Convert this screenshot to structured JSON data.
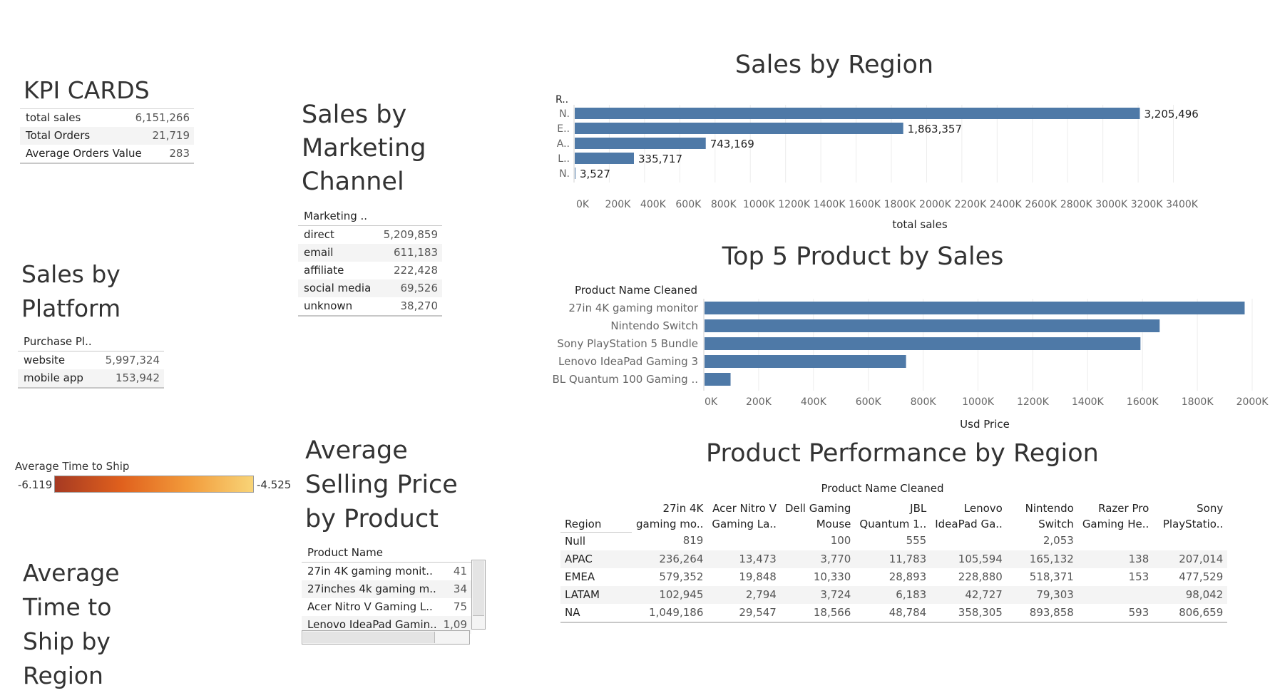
{
  "kpi": {
    "title": "KPI CARDS",
    "rows": [
      {
        "label": "total sales",
        "value": "6,151,266"
      },
      {
        "label": "Total Orders",
        "value": "21,719"
      },
      {
        "label": "Average Orders Value",
        "value": "283"
      }
    ]
  },
  "platform": {
    "title_lines": [
      "Sales by",
      "Platform"
    ],
    "header": "Purchase Pl..",
    "rows": [
      {
        "label": "website",
        "value": "5,997,324"
      },
      {
        "label": "mobile app",
        "value": "153,942"
      }
    ]
  },
  "marketing": {
    "title_lines": [
      "Sales by",
      "Marketing",
      "Channel"
    ],
    "header": "Marketing ..",
    "rows": [
      {
        "label": "direct",
        "value": "5,209,859"
      },
      {
        "label": "email",
        "value": "611,183"
      },
      {
        "label": "affiliate",
        "value": "222,428"
      },
      {
        "label": "social media",
        "value": "69,526"
      },
      {
        "label": "unknown",
        "value": "38,270"
      }
    ]
  },
  "ship_legend": {
    "title": "Average Time to Ship",
    "min_label": "-6.119",
    "max_label": "-4.525",
    "colors": [
      "#a63a22",
      "#e0601d",
      "#f29a3a",
      "#f8d477"
    ]
  },
  "avg_ship_title_lines": [
    "Average",
    "Time to",
    "Ship by",
    "Region"
  ],
  "asp": {
    "title_lines": [
      "Average",
      "Selling Price",
      "by Product"
    ],
    "header": "Product Name",
    "rows": [
      {
        "label": "27in 4K gaming monit..",
        "value": "41"
      },
      {
        "label": "27inches 4k gaming m..",
        "value": "34"
      },
      {
        "label": "Acer Nitro V Gaming L..",
        "value": "75"
      },
      {
        "label": "Lenovo IdeaPad Gamin..",
        "value": "1,09"
      }
    ]
  },
  "chart_data": [
    {
      "type": "bar",
      "orientation": "horizontal",
      "title": "Sales by Region",
      "ylabel": "R..",
      "xlabel": "total sales",
      "categories": [
        "N.",
        "E..",
        "A..",
        "L..",
        "N."
      ],
      "values": [
        3205496,
        1863357,
        743169,
        335717,
        3527
      ],
      "value_labels": [
        "3,205,496",
        "1,863,357",
        "743,169",
        "335,717",
        "3,527"
      ],
      "xlim": [
        0,
        3600000
      ],
      "ticks": [
        0,
        200000,
        400000,
        600000,
        800000,
        1000000,
        1200000,
        1400000,
        1600000,
        1800000,
        2000000,
        2200000,
        2400000,
        2600000,
        2800000,
        3000000,
        3200000,
        3400000
      ],
      "tick_labels": [
        "0K",
        "200K",
        "400K",
        "600K",
        "800K",
        "1000K",
        "1200K",
        "1400K",
        "1600K",
        "1800K",
        "2000K",
        "2200K",
        "2400K",
        "2600K",
        "2800K",
        "3000K",
        "3200K",
        "3400K"
      ],
      "grid": true,
      "color": "#4e79a7"
    },
    {
      "type": "bar",
      "orientation": "horizontal",
      "title": "Top 5 Product by Sales",
      "ylabel": "Product Name Cleaned",
      "xlabel": "Usd Price",
      "categories": [
        "27in 4K gaming monitor",
        "Nintendo Switch",
        "Sony PlayStation 5 Bundle",
        "Lenovo IdeaPad Gaming 3",
        "JBL Quantum 100 Gaming .."
      ],
      "values": [
        1970000,
        1660000,
        1590000,
        735000,
        95000
      ],
      "xlim": [
        0,
        2000000
      ],
      "ticks": [
        0,
        200000,
        400000,
        600000,
        800000,
        1000000,
        1200000,
        1400000,
        1600000,
        1800000,
        2000000
      ],
      "tick_labels": [
        "0K",
        "200K",
        "400K",
        "600K",
        "800K",
        "1000K",
        "1200K",
        "1400K",
        "1600K",
        "1800K",
        "2000K"
      ],
      "grid": true,
      "color": "#4e79a7"
    },
    {
      "type": "table",
      "title": "Product Performance by Region",
      "column_group": "Product Name Cleaned",
      "row_header": "Region",
      "columns": [
        [
          "27in 4K",
          "gaming mo.."
        ],
        [
          "Acer Nitro V",
          "Gaming La.."
        ],
        [
          "Dell Gaming",
          "Mouse"
        ],
        [
          "JBL",
          "Quantum 1.."
        ],
        [
          "Lenovo",
          "IdeaPad Ga.."
        ],
        [
          "Nintendo",
          "Switch"
        ],
        [
          "Razer Pro",
          "Gaming He.."
        ],
        [
          "Sony",
          "PlayStatio.."
        ]
      ],
      "rows": [
        {
          "region": "Null",
          "values": [
            "819",
            "",
            "100",
            "555",
            "",
            "2,053",
            "",
            ""
          ]
        },
        {
          "region": "APAC",
          "values": [
            "236,264",
            "13,473",
            "3,770",
            "11,783",
            "105,594",
            "165,132",
            "138",
            "207,014"
          ]
        },
        {
          "region": "EMEA",
          "values": [
            "579,352",
            "19,848",
            "10,330",
            "28,893",
            "228,880",
            "518,371",
            "153",
            "477,529"
          ]
        },
        {
          "region": "LATAM",
          "values": [
            "102,945",
            "2,794",
            "3,724",
            "6,183",
            "42,727",
            "79,303",
            "",
            "98,042"
          ]
        },
        {
          "region": "NA",
          "values": [
            "1,049,186",
            "29,547",
            "18,566",
            "48,784",
            "358,305",
            "893,858",
            "593",
            "806,659"
          ]
        }
      ]
    }
  ]
}
